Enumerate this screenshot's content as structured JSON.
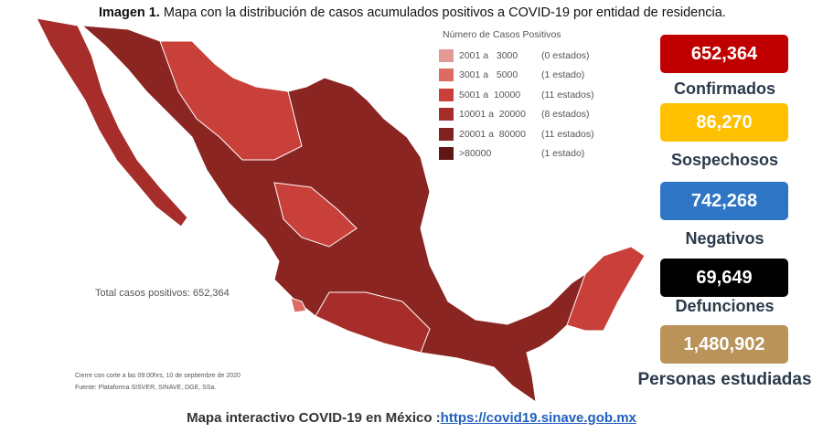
{
  "header": {
    "label": "Imagen 1.",
    "title": "Mapa con la distribución de casos acumulados positivos a COVID-19 por entidad de residencia."
  },
  "legend": {
    "title": "Número de Casos Positivos",
    "rows": [
      {
        "range": "2001 a   3000",
        "count": "(0 estados)",
        "color": "#e39a96"
      },
      {
        "range": "3001 a   5000",
        "count": "(1 estado)",
        "color": "#dd6a63"
      },
      {
        "range": "5001 a  10000",
        "count": "(11 estados)",
        "color": "#c9403a"
      },
      {
        "range": "10001 a  20000",
        "count": "(8 estados)",
        "color": "#a62d29"
      },
      {
        "range": "20001 a  80000",
        "count": "(11 estados)",
        "color": "#7f2220"
      },
      {
        "range": ">80000",
        "count": "(1 estado)",
        "color": "#5e1715"
      }
    ]
  },
  "map": {
    "total": "Total casos positivos: 652,364",
    "notes": [
      "Cierre con corte a las 09:00hrs, 10 de septiembre de 2020",
      "Fuente: Plataforma SISVER, SINAVE, DGE, SSa."
    ]
  },
  "stats": [
    {
      "value": "652,364",
      "label": "Confirmados",
      "color": "#c00000"
    },
    {
      "value": "86,270",
      "label": "Sospechosos",
      "color": "#ffc000"
    },
    {
      "value": "742,268",
      "label": "Negativos",
      "color": "#2e75c6"
    },
    {
      "value": "69,649",
      "label": "Defunciones",
      "color": "#000000"
    },
    {
      "value": "1,480,902",
      "label": "Personas estudiadas",
      "color": "#b9935a"
    }
  ],
  "footer": {
    "text": "Mapa interactivo COVID-19 en México :",
    "link": "https://covid19.sinave.gob.mx"
  }
}
